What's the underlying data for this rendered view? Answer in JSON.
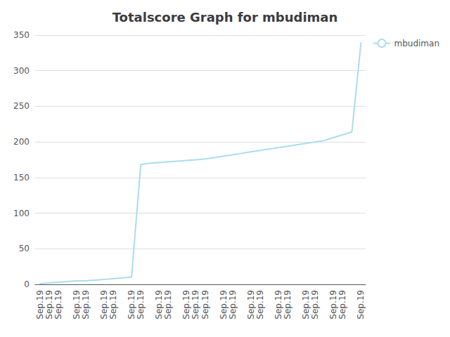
{
  "chart_data": {
    "type": "line",
    "title": "Totalscore Graph for mbudiman",
    "categories": [
      "Sep.19",
      "Sep.19",
      "Sep.19",
      null,
      "Sep.19",
      "Sep.19",
      null,
      "Sep.19",
      "Sep.19",
      null,
      "Sep.19",
      "Sep.19",
      null,
      "Sep.19",
      "Sep.19",
      null,
      "Sep.19",
      "Sep.19",
      "Sep.19",
      null,
      "Sep.19",
      "Sep.19",
      null,
      "Sep.19",
      "Sep.19",
      null,
      "Sep.19",
      "Sep.19",
      null,
      "Sep.19",
      "Sep.19",
      null,
      "Sep.19",
      "Sep.19",
      null,
      "Sep.19"
    ],
    "series": [
      {
        "name": "mbudiman",
        "color": "#aaddee",
        "values": [
          1,
          2,
          3,
          4,
          5,
          5,
          6,
          7,
          8,
          9,
          10,
          168,
          170,
          171,
          172,
          173,
          174,
          175,
          176,
          178,
          180,
          182,
          184,
          186,
          188,
          190,
          192,
          194,
          196,
          198,
          200,
          202,
          206,
          210,
          214,
          340
        ]
      }
    ],
    "ylim": [
      0,
      350
    ],
    "yticks": [
      0,
      50,
      100,
      150,
      200,
      250,
      300,
      350
    ],
    "grid": true,
    "legend": "right"
  }
}
